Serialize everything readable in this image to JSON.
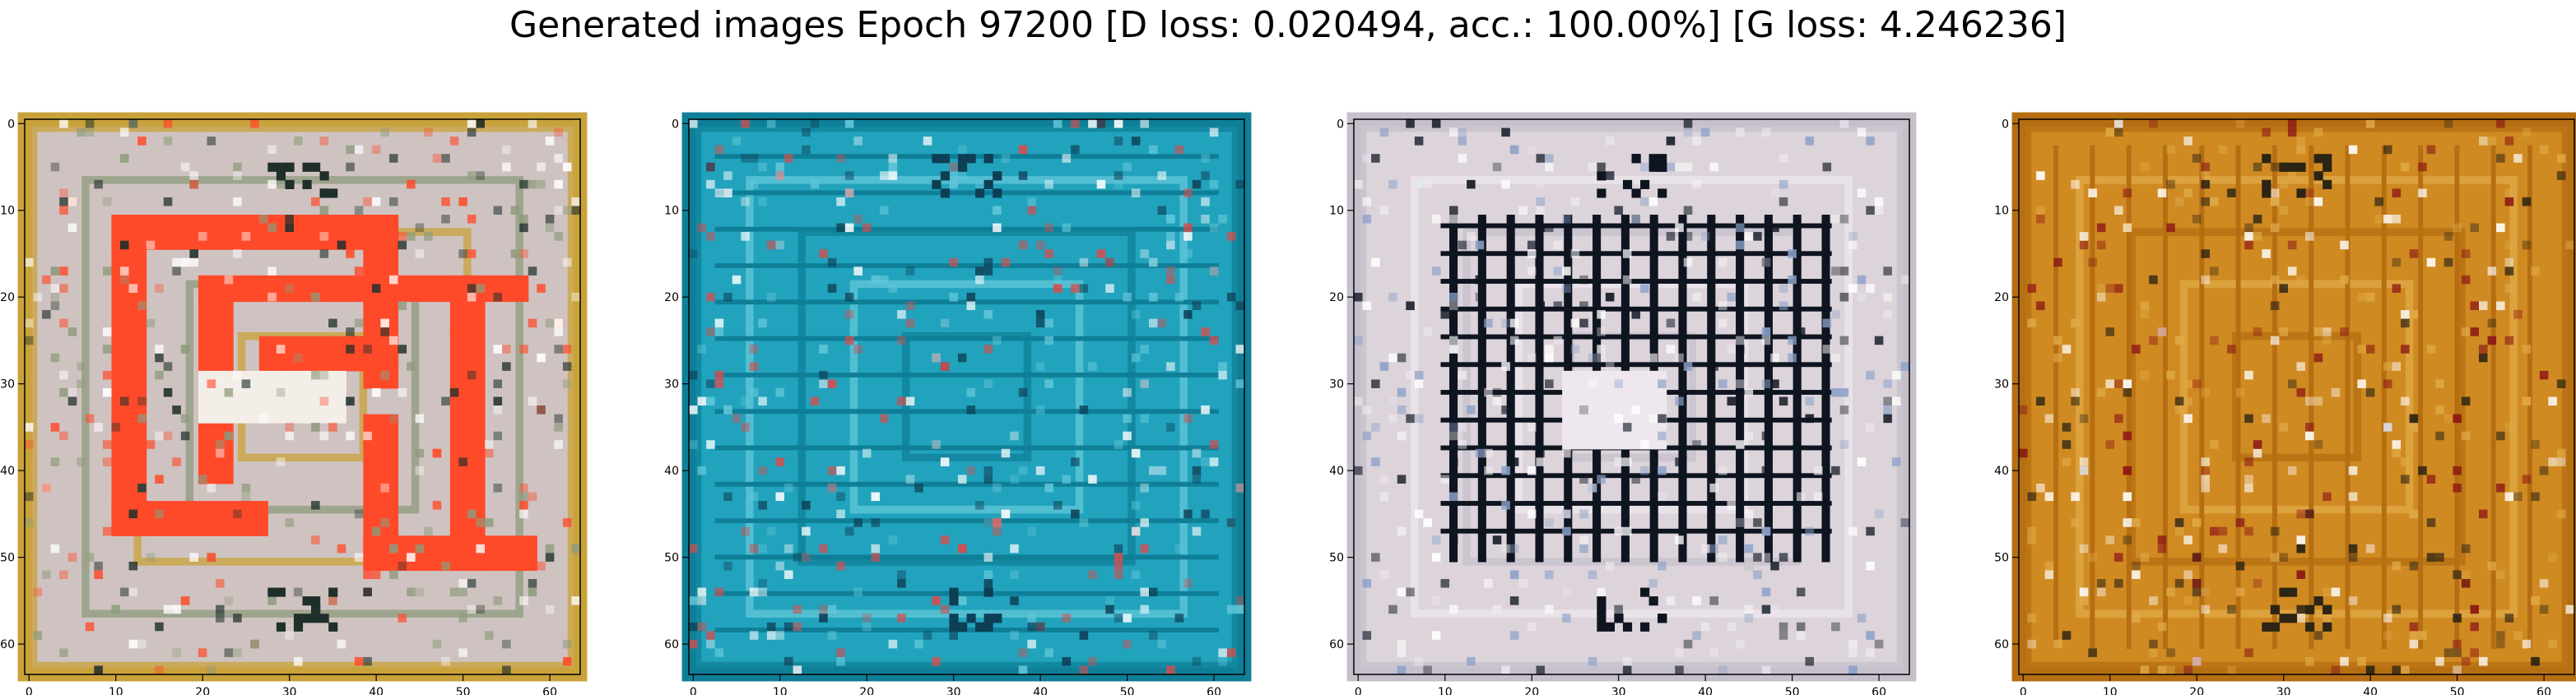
{
  "figure": {
    "title": "Generated images Epoch 97200 [D loss: 0.020494, acc.: 100.00%] [G loss: 4.246236]"
  },
  "axes": {
    "x_ticks": [
      "0",
      "10",
      "20",
      "30",
      "40",
      "50",
      "60"
    ],
    "y_ticks": [
      "0",
      "10",
      "20",
      "30",
      "40",
      "50",
      "60"
    ],
    "range": [
      -0.5,
      63.5
    ]
  },
  "panels": [
    {
      "id": "panel-1",
      "content_icon": "generated-image-orange-spiral-icon",
      "colors": {
        "base": "#cfc3c1",
        "frame": "#c9a23a",
        "accent": "#ff4a2a",
        "dark": "#1f2f2a",
        "mid": "#8e9b7c"
      }
    },
    {
      "id": "panel-2",
      "content_icon": "generated-image-teal-texture-icon",
      "colors": {
        "base": "#22a3bd",
        "frame": "#0f7f98",
        "accent": "#d84c4c",
        "dark": "#0d3f55",
        "mid": "#63c7d9"
      }
    },
    {
      "id": "panel-3",
      "content_icon": "generated-image-dark-grid-icon",
      "colors": {
        "base": "#dcd4da",
        "frame": "#c6c0cc",
        "accent": "#8aa0c8",
        "dark": "#0e1520",
        "mid": "#eee8ee"
      }
    },
    {
      "id": "panel-4",
      "content_icon": "generated-image-amber-pattern-icon",
      "colors": {
        "base": "#cf8a22",
        "frame": "#b56e12",
        "accent": "#8a1414",
        "dark": "#2c2414",
        "mid": "#e0aa48"
      }
    }
  ]
}
